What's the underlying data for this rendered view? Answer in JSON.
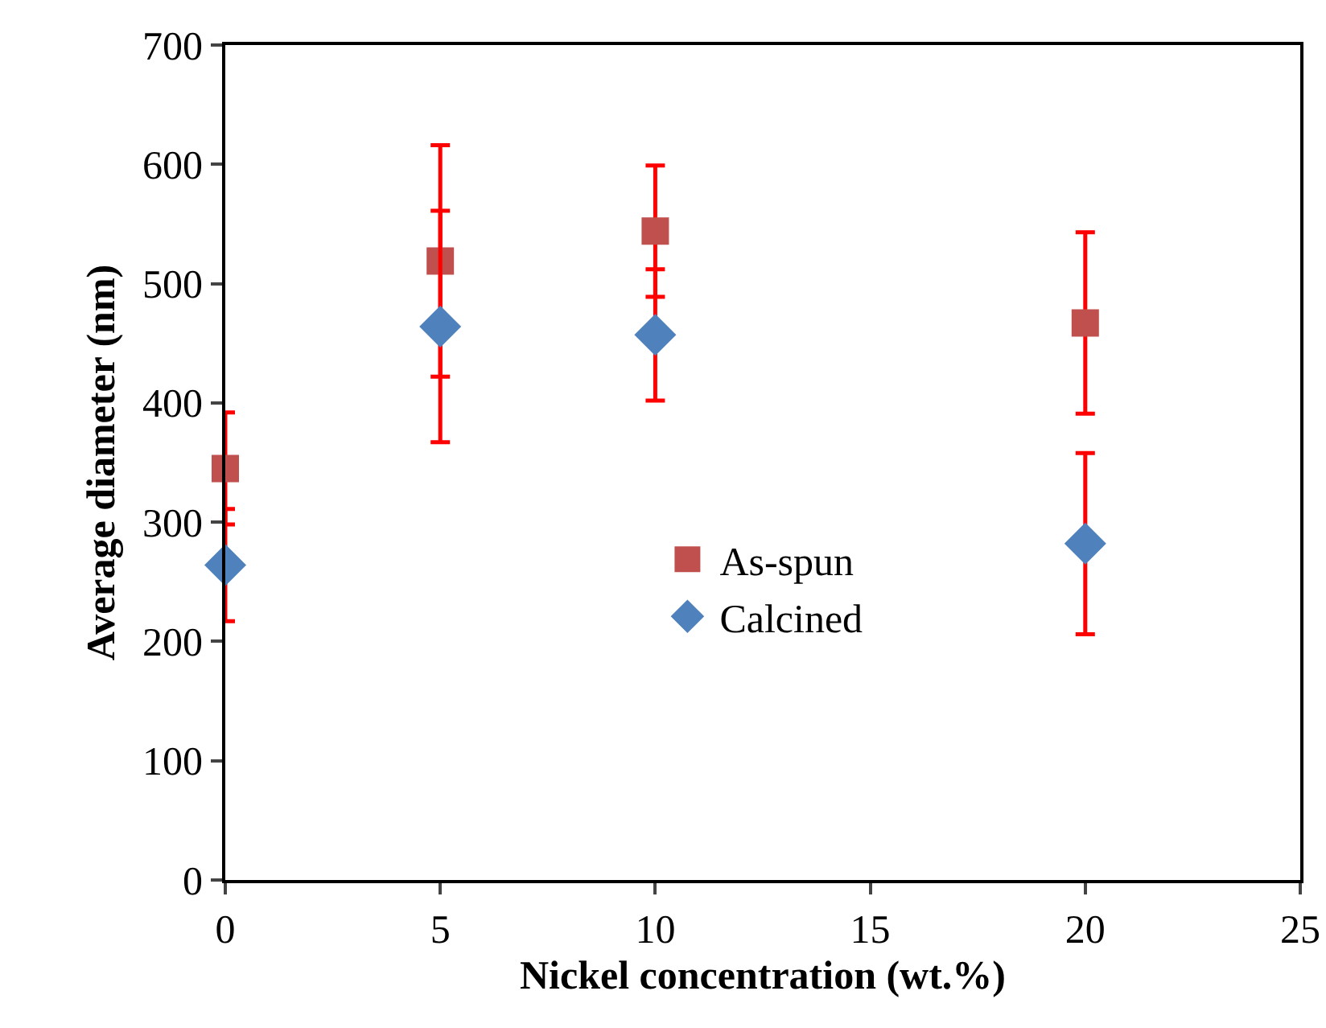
{
  "chart_data": {
    "type": "scatter",
    "xlabel": "Nickel concentration (wt.%)",
    "ylabel": "Average diameter (nm)",
    "x": [
      0,
      5,
      10,
      20
    ],
    "series": [
      {
        "name": "As-spun",
        "color": "#c0504d",
        "marker": "square",
        "values": [
          345,
          519,
          544,
          467
        ],
        "errors": [
          47,
          97,
          55,
          76
        ]
      },
      {
        "name": "Calcined",
        "color": "#4f81bd",
        "marker": "diamond",
        "values": [
          264,
          464,
          457,
          282
        ],
        "errors": [
          47,
          97,
          55,
          76
        ]
      }
    ],
    "xlim": [
      0,
      25
    ],
    "xticks": [
      0,
      5,
      10,
      15,
      20,
      25
    ],
    "ylim": [
      0,
      700
    ],
    "yticks": [
      0,
      100,
      200,
      300,
      400,
      500,
      600,
      700
    ],
    "grid": false,
    "legend": "center"
  }
}
